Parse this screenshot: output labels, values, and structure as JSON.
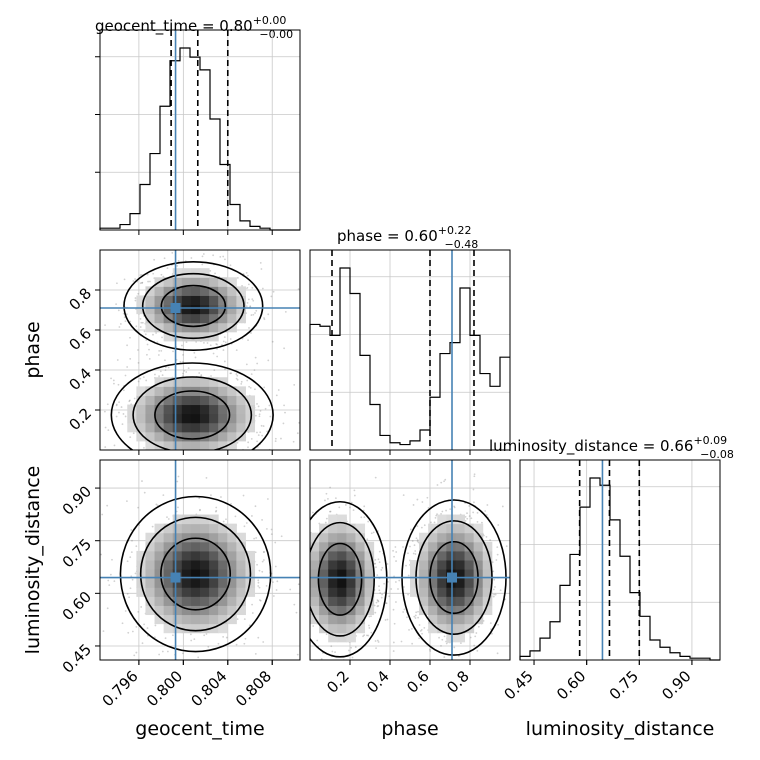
{
  "chart_data": {
    "type": "corner",
    "parameters": [
      {
        "name": "geocent_time",
        "xlabel": "geocent_time",
        "title": {
          "prefix": "geocent_time = ",
          "value": "0.80",
          "plus": "+0.00",
          "minus": "−0.00"
        },
        "range": [
          0.7925,
          0.8105
        ],
        "ticks": [
          0.796,
          0.8,
          0.804,
          0.808
        ],
        "tick_labels": [
          "0.796",
          "0.800",
          "0.804",
          "0.808"
        ],
        "truth": 0.7993,
        "quantiles": [
          0.7989,
          0.8013,
          0.804
        ],
        "histogram": {
          "edges_start": 0.7925,
          "bin_width": 0.0009,
          "counts": [
            0.01,
            0.01,
            0.03,
            0.09,
            0.25,
            0.42,
            0.68,
            0.93,
            1.0,
            0.95,
            0.88,
            0.61,
            0.36,
            0.14,
            0.05,
            0.02,
            0.01,
            0.0,
            0.0,
            0.0
          ]
        }
      },
      {
        "name": "phase",
        "ylabel": "phase",
        "xlabel": "phase",
        "title": {
          "prefix": "phase = ",
          "value": "0.60",
          "plus": "+0.22",
          "minus": "−0.48"
        },
        "range": [
          0.0,
          1.0
        ],
        "ticks": [
          0.2,
          0.4,
          0.6,
          0.8
        ],
        "tick_labels": [
          "0.2",
          "0.4",
          "0.6",
          "0.8"
        ],
        "truth": 0.71,
        "quantiles": [
          0.11,
          0.6,
          0.82
        ],
        "histogram": {
          "edges_start": 0.0,
          "bin_width": 0.05,
          "counts": [
            0.69,
            0.68,
            0.63,
            1.0,
            0.86,
            0.52,
            0.25,
            0.08,
            0.04,
            0.03,
            0.05,
            0.11,
            0.29,
            0.53,
            0.59,
            0.89,
            0.63,
            0.42,
            0.35,
            0.51
          ]
        }
      },
      {
        "name": "luminosity_distance",
        "ylabel": "luminosity_distance",
        "xlabel": "luminosity_distance",
        "title": {
          "prefix": "luminosity_distance = ",
          "value": "0.66",
          "plus": "+0.09",
          "minus": "−0.08"
        },
        "range": [
          0.41,
          0.98
        ],
        "ticks": [
          0.45,
          0.6,
          0.75,
          0.9
        ],
        "tick_labels": [
          "0.45",
          "0.60",
          "0.75",
          "0.90"
        ],
        "truth": 0.645,
        "quantiles": [
          0.58,
          0.665,
          0.75
        ],
        "histogram": {
          "edges_start": 0.41,
          "bin_width": 0.0285,
          "counts": [
            0.02,
            0.05,
            0.12,
            0.21,
            0.41,
            0.58,
            0.84,
            1.0,
            0.96,
            0.77,
            0.57,
            0.37,
            0.24,
            0.11,
            0.07,
            0.04,
            0.02,
            0.01,
            0.01,
            0.0
          ]
        }
      }
    ],
    "pairs": [
      {
        "x": "geocent_time",
        "y": "phase",
        "truth": [
          0.7993,
          0.71
        ],
        "modes": [
          {
            "cx": 0.8009,
            "cy": 0.72,
            "sx": 0.0024,
            "sy": 0.085
          },
          {
            "cx": 0.8008,
            "cy": 0.175,
            "sx": 0.0028,
            "sy": 0.1
          }
        ]
      },
      {
        "x": "geocent_time",
        "y": "luminosity_distance",
        "truth": [
          0.7993,
          0.645
        ],
        "modes": [
          {
            "cx": 0.8011,
            "cy": 0.655,
            "sx": 0.0026,
            "sy": 0.085
          }
        ]
      },
      {
        "x": "phase",
        "y": "luminosity_distance",
        "truth": [
          0.71,
          0.645
        ],
        "modes": [
          {
            "cx": 0.15,
            "cy": 0.64,
            "sx": 0.09,
            "sy": 0.085
          },
          {
            "cx": 0.72,
            "cy": 0.645,
            "sx": 0.1,
            "sy": 0.085
          }
        ]
      }
    ],
    "truth_color": "#4682b4",
    "grid": true
  }
}
